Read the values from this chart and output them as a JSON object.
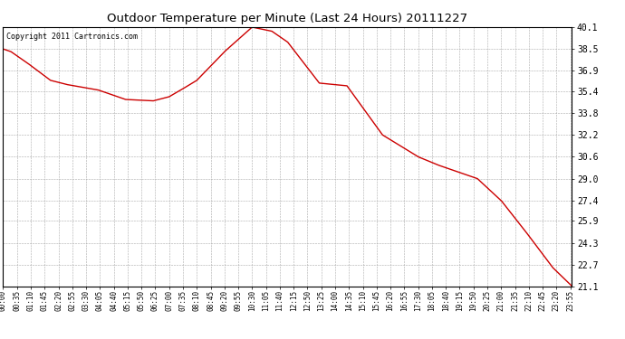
{
  "title": "Outdoor Temperature per Minute (Last 24 Hours) 20111227",
  "copyright_text": "Copyright 2011 Cartronics.com",
  "line_color": "#cc0000",
  "background_color": "#ffffff",
  "grid_color": "#aaaaaa",
  "yticks": [
    21.1,
    22.7,
    24.3,
    25.9,
    27.4,
    29.0,
    30.6,
    32.2,
    33.8,
    35.4,
    36.9,
    38.5,
    40.1
  ],
  "ylim": [
    21.1,
    40.1
  ],
  "xtick_labels": [
    "00:00",
    "00:35",
    "01:10",
    "01:45",
    "02:20",
    "02:55",
    "03:30",
    "04:05",
    "04:40",
    "05:15",
    "05:50",
    "06:25",
    "07:00",
    "07:35",
    "08:10",
    "08:45",
    "09:20",
    "09:55",
    "10:30",
    "11:05",
    "11:40",
    "12:15",
    "12:50",
    "13:25",
    "14:00",
    "14:35",
    "15:10",
    "15:45",
    "16:20",
    "16:55",
    "17:30",
    "18:05",
    "18:40",
    "19:15",
    "19:50",
    "20:25",
    "21:00",
    "21:35",
    "22:10",
    "22:45",
    "23:20",
    "23:55"
  ],
  "keypoints_x": [
    0,
    20,
    60,
    120,
    160,
    200,
    240,
    310,
    380,
    420,
    450,
    490,
    560,
    630,
    680,
    720,
    800,
    870,
    960,
    1050,
    1100,
    1150,
    1200,
    1260,
    1320,
    1390,
    1440
  ],
  "keypoints_y": [
    38.5,
    38.3,
    37.5,
    36.2,
    35.9,
    35.7,
    35.5,
    34.8,
    34.7,
    35.0,
    35.5,
    36.2,
    38.3,
    40.1,
    39.8,
    39.0,
    36.0,
    35.8,
    32.2,
    30.6,
    30.0,
    29.5,
    29.0,
    27.4,
    25.2,
    22.5,
    21.1
  ]
}
